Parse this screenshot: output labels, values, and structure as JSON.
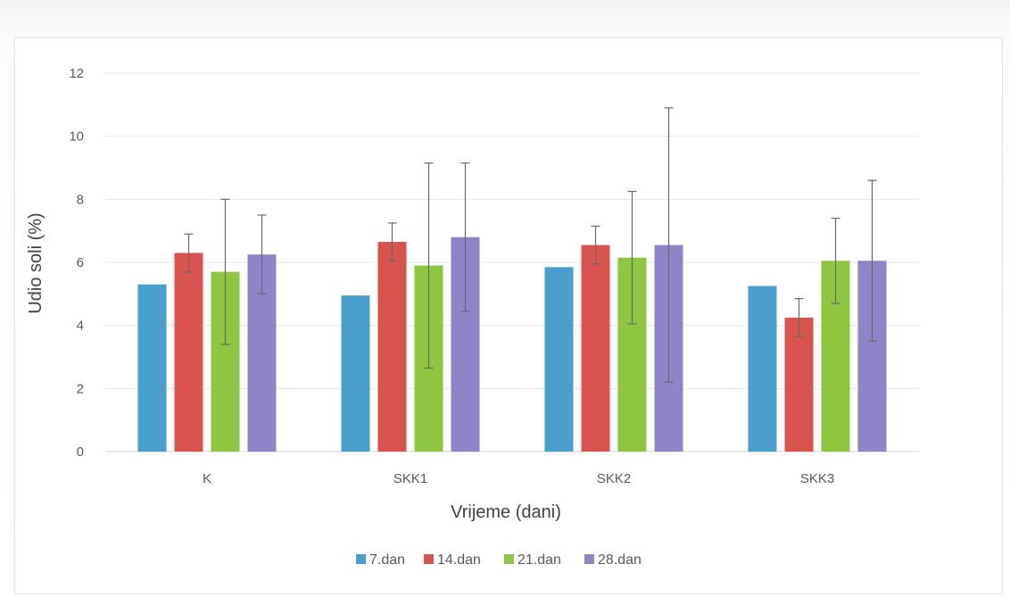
{
  "chart_data": {
    "type": "bar",
    "title": "",
    "xlabel": "Vrijeme (dani)",
    "ylabel": "Udio soli (%)",
    "ylim": [
      0,
      12
    ],
    "yticks": [
      0,
      2,
      4,
      6,
      8,
      10,
      12
    ],
    "grid": true,
    "legend_position": "bottom",
    "categories": [
      "K",
      "SKK1",
      "SKK2",
      "SKK3"
    ],
    "series": [
      {
        "name": "7.dan",
        "color": "#4a9ecb",
        "values": [
          5.3,
          4.95,
          5.85,
          5.25
        ],
        "errors": [
          null,
          null,
          null,
          null
        ]
      },
      {
        "name": "14.dan",
        "color": "#d9544f",
        "values": [
          6.3,
          6.65,
          6.55,
          4.25
        ],
        "errors": [
          0.6,
          0.6,
          0.6,
          0.6
        ]
      },
      {
        "name": "21.dan",
        "color": "#8ec641",
        "values": [
          5.7,
          5.9,
          6.15,
          6.05
        ],
        "errors": [
          2.3,
          3.25,
          2.1,
          1.35
        ]
      },
      {
        "name": "28.dan",
        "color": "#8e85c8",
        "values": [
          6.25,
          6.8,
          6.55,
          6.05
        ],
        "errors": [
          1.25,
          2.35,
          4.35,
          2.55
        ]
      }
    ]
  }
}
